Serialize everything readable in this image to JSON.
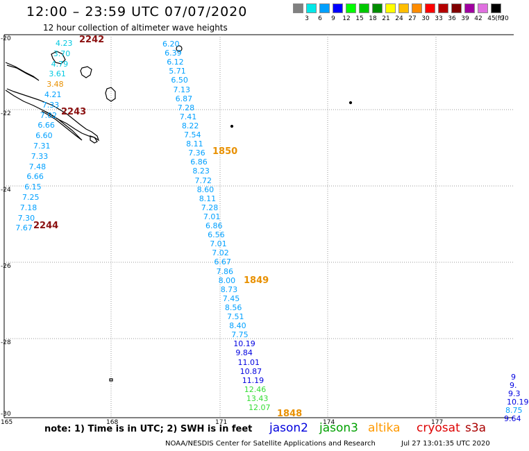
{
  "header": {
    "title": "12:00 – 23:59 UTC 07/07/2020",
    "subtitle": "12 hour collection of altimeter wave heights"
  },
  "legend": {
    "unit": "(ft)",
    "bins": [
      {
        "label": "3",
        "color": "#808080"
      },
      {
        "label": "6",
        "color": "#00e8e8"
      },
      {
        "label": "9",
        "color": "#00a0ff"
      },
      {
        "label": "12",
        "color": "#0000ff"
      },
      {
        "label": "15",
        "color": "#00ff00"
      },
      {
        "label": "18",
        "color": "#00c800"
      },
      {
        "label": "21",
        "color": "#008c00"
      },
      {
        "label": "24",
        "color": "#ffff00"
      },
      {
        "label": "27",
        "color": "#ffbe00"
      },
      {
        "label": "30",
        "color": "#ff8c00"
      },
      {
        "label": "33",
        "color": "#ff0000"
      },
      {
        "label": "36",
        "color": "#b40000"
      },
      {
        "label": "39",
        "color": "#800000"
      },
      {
        "label": "42",
        "color": "#a000a0"
      },
      {
        "label": "45",
        "color": "#e070e0"
      },
      {
        "label": "70",
        "color": "#000000"
      }
    ]
  },
  "axes": {
    "lat_labels": [
      "-20",
      "-22",
      "-24",
      "-26",
      "-28",
      "-30"
    ],
    "lon_labels": [
      "165",
      "168",
      "171",
      "174",
      "177"
    ],
    "grid": "dashed"
  },
  "tracks": [
    {
      "id": "track-2242",
      "pass_label": "2242",
      "pass_color": "#8b1010",
      "values": [
        "4.23",
        "3.70",
        "4.79",
        "3.61",
        "3.48",
        "4.21",
        "7.33",
        "7.02",
        "6.66",
        "6.60",
        "7.31",
        "7.33",
        "7.48",
        "6.66",
        "6.15",
        "7.25",
        "7.18",
        "7.30",
        "7.67"
      ],
      "colors": [
        "#00c8e0",
        "#00c8e0",
        "#00c8e0",
        "#00c8e0",
        "#e89000",
        "#00a0ff",
        "#00a0ff",
        "#00a0ff",
        "#00a0ff",
        "#00a0ff",
        "#00a0ff",
        "#00a0ff",
        "#00a0ff",
        "#00a0ff",
        "#00a0ff",
        "#00a0ff",
        "#00a0ff",
        "#00a0ff",
        "#00a0ff"
      ]
    },
    {
      "id": "track-1850",
      "pass_label": "1850",
      "pass_color": "#e89000",
      "values": [
        "6.20",
        "6.39",
        "6.12",
        "5.71",
        "6.50",
        "7.13",
        "6.87",
        "7.28",
        "7.41",
        "8.22",
        "7.54",
        "8.11",
        "7.36",
        "6.86",
        "8.23",
        "7.72",
        "8.60",
        "8.11",
        "7.28",
        "7.01",
        "6.86",
        "6.56",
        "7.01",
        "7.02",
        "6.67",
        "7.86",
        "8.00",
        "8.73",
        "7.45",
        "8.56",
        "7.51",
        "8.40",
        "7.75",
        "10.19",
        "9.84",
        "11.01",
        "10.87",
        "11.19",
        "12.46",
        "13.43",
        "12.07"
      ],
      "colors": [
        "#00a0ff",
        "#00a0ff",
        "#00a0ff",
        "#00a0ff",
        "#00a0ff",
        "#00a0ff",
        "#00a0ff",
        "#00a0ff",
        "#00a0ff",
        "#00a0ff",
        "#00a0ff",
        "#00a0ff",
        "#00a0ff",
        "#00a0ff",
        "#00a0ff",
        "#00a0ff",
        "#00a0ff",
        "#00a0ff",
        "#00a0ff",
        "#00a0ff",
        "#00a0ff",
        "#00a0ff",
        "#00a0ff",
        "#00a0ff",
        "#00a0ff",
        "#00a0ff",
        "#00a0ff",
        "#00a0ff",
        "#00a0ff",
        "#00a0ff",
        "#00a0ff",
        "#00a0ff",
        "#00a0ff",
        "#0000e0",
        "#0000e0",
        "#0000e0",
        "#0000e0",
        "#0000e0",
        "#33dd33",
        "#33dd33",
        "#33dd33"
      ]
    },
    {
      "id": "track-east",
      "pass_label": "",
      "pass_color": "#0000e0",
      "values": [
        "9",
        "9.",
        "9.3",
        "10.19",
        "8.75",
        "9.64"
      ],
      "colors": [
        "#0000e0",
        "#0000e0",
        "#0000e0",
        "#0000e0",
        "#00a0ff",
        "#0000e0"
      ]
    }
  ],
  "pass_labels": {
    "p2243": "2243",
    "p2244": "2244",
    "p1849": "1849",
    "p1848": "1848"
  },
  "footer": {
    "note": "note:  1) Time is in UTC;  2) SWH is in feet",
    "satellites": [
      {
        "name": "jason2",
        "color": "#0000dd"
      },
      {
        "name": "jason3",
        "color": "#00a000"
      },
      {
        "name": "altika",
        "color": "#ff9900"
      },
      {
        "name": "cryosat",
        "color": "#dd0000"
      },
      {
        "name": "s3a",
        "color": "#aa0000"
      }
    ],
    "credit": "NOAA/NESDIS Center for Satellite Applications and Research",
    "timestamp": "Jul 27 13:01:35 UTC 2020"
  }
}
